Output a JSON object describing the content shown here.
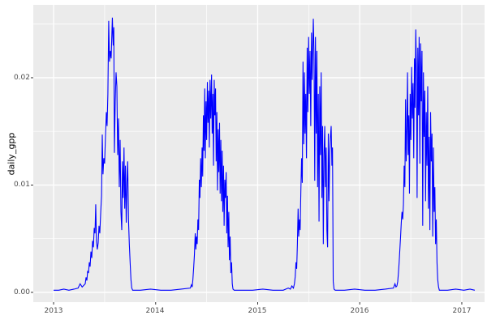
{
  "figure": {
    "background": "#FFFFFF",
    "panel_bg": "#EBEBEB",
    "grid_color": "#FFFFFF",
    "axis_text_color": "#4D4D4D",
    "tick_mark_color": "#333333"
  },
  "chart_data": {
    "type": "line",
    "title": "",
    "xlabel": "",
    "ylabel": "daily_gpp",
    "legend": "none",
    "grid": true,
    "line_color": "#0000FF",
    "xlim": [
      2012.801,
      2017.223
    ],
    "ylim": [
      -0.00091,
      0.02679
    ],
    "x_major_ticks": [
      2013,
      2014,
      2015,
      2016,
      2017
    ],
    "x_tick_labels": [
      "2013",
      "2014",
      "2015",
      "2016",
      "2017"
    ],
    "x_minor_ticks": [
      2013.5,
      2014.5,
      2015.5,
      2016.5
    ],
    "y_major_ticks": [
      0.0,
      0.01,
      0.02
    ],
    "y_tick_labels": [
      "0.00",
      "0.01",
      "0.02"
    ],
    "y_minor_ticks": [
      0.005,
      0.015,
      0.025
    ],
    "peak_summary": {
      "2013": 0.0256,
      "2014": 0.0203,
      "2015": 0.0255,
      "2016": 0.0245
    },
    "series": [
      {
        "name": "daily_gpp",
        "points": [
          [
            2013.0,
            0.0002
          ],
          [
            2013.05,
            0.0002
          ],
          [
            2013.1,
            0.0003
          ],
          [
            2013.15,
            0.0002
          ],
          [
            2013.2,
            0.0003
          ],
          [
            2013.24,
            0.0004
          ],
          [
            2013.26,
            0.0008
          ],
          [
            2013.28,
            0.0005
          ],
          [
            2013.31,
            0.0008
          ],
          [
            2013.318,
            0.0014
          ],
          [
            2013.326,
            0.0011
          ],
          [
            2013.334,
            0.002
          ],
          [
            2013.342,
            0.0018
          ],
          [
            2013.35,
            0.0028
          ],
          [
            2013.358,
            0.0024
          ],
          [
            2013.366,
            0.0038
          ],
          [
            2013.374,
            0.0032
          ],
          [
            2013.382,
            0.0048
          ],
          [
            2013.39,
            0.0042
          ],
          [
            2013.398,
            0.006
          ],
          [
            2013.406,
            0.0055
          ],
          [
            2013.413,
            0.0082
          ],
          [
            2013.42,
            0.0048
          ],
          [
            2013.428,
            0.004
          ],
          [
            2013.437,
            0.0046
          ],
          [
            2013.445,
            0.0062
          ],
          [
            2013.453,
            0.0055
          ],
          [
            2013.462,
            0.0075
          ],
          [
            2013.47,
            0.009
          ],
          [
            2013.477,
            0.0147
          ],
          [
            2013.484,
            0.011
          ],
          [
            2013.492,
            0.0125
          ],
          [
            2013.5,
            0.012
          ],
          [
            2013.508,
            0.0145
          ],
          [
            2013.517,
            0.0168
          ],
          [
            2013.524,
            0.0155
          ],
          [
            2013.532,
            0.0185
          ],
          [
            2013.54,
            0.0253
          ],
          [
            2013.548,
            0.0215
          ],
          [
            2013.556,
            0.0225
          ],
          [
            2013.564,
            0.0218
          ],
          [
            2013.576,
            0.0256
          ],
          [
            2013.584,
            0.023
          ],
          [
            2013.59,
            0.0247
          ],
          [
            2013.596,
            0.013
          ],
          [
            2013.604,
            0.0178
          ],
          [
            2013.612,
            0.0205
          ],
          [
            2013.62,
            0.0192
          ],
          [
            2013.628,
            0.0128
          ],
          [
            2013.636,
            0.0162
          ],
          [
            2013.644,
            0.0098
          ],
          [
            2013.652,
            0.0142
          ],
          [
            2013.66,
            0.0075
          ],
          [
            2013.668,
            0.0058
          ],
          [
            2013.675,
            0.0122
          ],
          [
            2013.682,
            0.0088
          ],
          [
            2013.69,
            0.0135
          ],
          [
            2013.697,
            0.0078
          ],
          [
            2013.704,
            0.0118
          ],
          [
            2013.712,
            0.0065
          ],
          [
            2013.719,
            0.0102
          ],
          [
            2013.726,
            0.0122
          ],
          [
            2013.734,
            0.0068
          ],
          [
            2013.742,
            0.0045
          ],
          [
            2013.75,
            0.0028
          ],
          [
            2013.758,
            0.0012
          ],
          [
            2013.766,
            0.0004
          ],
          [
            2013.775,
            0.0002
          ],
          [
            2013.85,
            0.0002
          ],
          [
            2013.95,
            0.0003
          ],
          [
            2014.05,
            0.0002
          ],
          [
            2014.15,
            0.0002
          ],
          [
            2014.25,
            0.0003
          ],
          [
            2014.34,
            0.0004
          ],
          [
            2014.35,
            0.0007
          ],
          [
            2014.358,
            0.0005
          ],
          [
            2014.365,
            0.0012
          ],
          [
            2014.372,
            0.0022
          ],
          [
            2014.38,
            0.0035
          ],
          [
            2014.388,
            0.0055
          ],
          [
            2014.394,
            0.004
          ],
          [
            2014.4,
            0.0052
          ],
          [
            2014.407,
            0.0045
          ],
          [
            2014.414,
            0.0068
          ],
          [
            2014.421,
            0.0058
          ],
          [
            2014.428,
            0.0105
          ],
          [
            2014.434,
            0.0088
          ],
          [
            2014.441,
            0.0125
          ],
          [
            2014.448,
            0.0098
          ],
          [
            2014.455,
            0.0135
          ],
          [
            2014.461,
            0.0108
          ],
          [
            2014.468,
            0.0165
          ],
          [
            2014.474,
            0.0132
          ],
          [
            2014.481,
            0.019
          ],
          [
            2014.487,
            0.0125
          ],
          [
            2014.494,
            0.0178
          ],
          [
            2014.5,
            0.0142
          ],
          [
            2014.507,
            0.0196
          ],
          [
            2014.513,
            0.0158
          ],
          [
            2014.52,
            0.0188
          ],
          [
            2014.526,
            0.0135
          ],
          [
            2014.533,
            0.0198
          ],
          [
            2014.54,
            0.0162
          ],
          [
            2014.548,
            0.0203
          ],
          [
            2014.554,
            0.0148
          ],
          [
            2014.561,
            0.0185
          ],
          [
            2014.567,
            0.0118
          ],
          [
            2014.574,
            0.0198
          ],
          [
            2014.58,
            0.0165
          ],
          [
            2014.587,
            0.019
          ],
          [
            2014.593,
            0.0122
          ],
          [
            2014.6,
            0.0168
          ],
          [
            2014.606,
            0.0095
          ],
          [
            2014.613,
            0.0152
          ],
          [
            2014.619,
            0.0112
          ],
          [
            2014.626,
            0.0158
          ],
          [
            2014.632,
            0.0092
          ],
          [
            2014.639,
            0.0142
          ],
          [
            2014.645,
            0.0085
          ],
          [
            2014.652,
            0.0132
          ],
          [
            2014.658,
            0.0075
          ],
          [
            2014.665,
            0.0118
          ],
          [
            2014.671,
            0.0062
          ],
          [
            2014.678,
            0.0105
          ],
          [
            2014.684,
            0.0088
          ],
          [
            2014.691,
            0.0112
          ],
          [
            2014.697,
            0.0055
          ],
          [
            2014.704,
            0.009
          ],
          [
            2014.71,
            0.0042
          ],
          [
            2014.717,
            0.0075
          ],
          [
            2014.723,
            0.003
          ],
          [
            2014.73,
            0.0052
          ],
          [
            2014.737,
            0.0018
          ],
          [
            2014.744,
            0.0028
          ],
          [
            2014.751,
            0.0008
          ],
          [
            2014.758,
            0.0003
          ],
          [
            2014.77,
            0.0002
          ],
          [
            2014.85,
            0.0002
          ],
          [
            2014.95,
            0.0002
          ],
          [
            2015.05,
            0.0003
          ],
          [
            2015.15,
            0.0002
          ],
          [
            2015.25,
            0.0002
          ],
          [
            2015.3,
            0.0004
          ],
          [
            2015.32,
            0.0003
          ],
          [
            2015.335,
            0.0006
          ],
          [
            2015.35,
            0.0004
          ],
          [
            2015.36,
            0.0008
          ],
          [
            2015.368,
            0.0015
          ],
          [
            2015.375,
            0.0028
          ],
          [
            2015.382,
            0.0022
          ],
          [
            2015.389,
            0.0045
          ],
          [
            2015.396,
            0.0078
          ],
          [
            2015.402,
            0.0052
          ],
          [
            2015.409,
            0.0068
          ],
          [
            2015.416,
            0.0058
          ],
          [
            2015.423,
            0.0095
          ],
          [
            2015.43,
            0.0125
          ],
          [
            2015.437,
            0.0102
          ],
          [
            2015.444,
            0.0215
          ],
          [
            2015.451,
            0.0138
          ],
          [
            2015.458,
            0.0205
          ],
          [
            2015.464,
            0.0148
          ],
          [
            2015.471,
            0.0185
          ],
          [
            2015.478,
            0.0125
          ],
          [
            2015.485,
            0.0228
          ],
          [
            2015.492,
            0.0168
          ],
          [
            2015.499,
            0.0238
          ],
          [
            2015.506,
            0.0185
          ],
          [
            2015.513,
            0.0225
          ],
          [
            2015.52,
            0.0155
          ],
          [
            2015.527,
            0.0242
          ],
          [
            2015.534,
            0.0198
          ],
          [
            2015.545,
            0.0255
          ],
          [
            2015.552,
            0.0222
          ],
          [
            2015.559,
            0.0104
          ],
          [
            2015.566,
            0.0238
          ],
          [
            2015.573,
            0.0148
          ],
          [
            2015.58,
            0.0225
          ],
          [
            2015.587,
            0.0098
          ],
          [
            2015.594,
            0.0185
          ],
          [
            2015.601,
            0.0066
          ],
          [
            2015.608,
            0.0192
          ],
          [
            2015.615,
            0.0128
          ],
          [
            2015.622,
            0.0205
          ],
          [
            2015.629,
            0.0088
          ],
          [
            2015.636,
            0.0155
          ],
          [
            2015.643,
            0.0045
          ],
          [
            2015.65,
            0.0128
          ],
          [
            2015.657,
            0.0155
          ],
          [
            2015.664,
            0.0098
          ],
          [
            2015.671,
            0.0135
          ],
          [
            2015.678,
            0.0058
          ],
          [
            2015.685,
            0.0042
          ],
          [
            2015.692,
            0.0148
          ],
          [
            2015.699,
            0.0085
          ],
          [
            2015.706,
            0.013
          ],
          [
            2015.713,
            0.0145
          ],
          [
            2015.72,
            0.0155
          ],
          [
            2015.727,
            0.0118
          ],
          [
            2015.733,
            0.0135
          ],
          [
            2015.74,
            0.001
          ],
          [
            2015.748,
            0.0003
          ],
          [
            2015.76,
            0.0002
          ],
          [
            2015.85,
            0.0002
          ],
          [
            2015.95,
            0.0003
          ],
          [
            2016.05,
            0.0002
          ],
          [
            2016.15,
            0.0002
          ],
          [
            2016.25,
            0.0003
          ],
          [
            2016.33,
            0.0004
          ],
          [
            2016.345,
            0.0008
          ],
          [
            2016.355,
            0.0005
          ],
          [
            2016.364,
            0.0006
          ],
          [
            2016.372,
            0.001
          ],
          [
            2016.379,
            0.0018
          ],
          [
            2016.386,
            0.0028
          ],
          [
            2016.393,
            0.004
          ],
          [
            2016.4,
            0.0052
          ],
          [
            2016.407,
            0.0065
          ],
          [
            2016.414,
            0.0075
          ],
          [
            2016.421,
            0.0068
          ],
          [
            2016.428,
            0.0082
          ],
          [
            2016.435,
            0.0118
          ],
          [
            2016.442,
            0.0098
          ],
          [
            2016.449,
            0.018
          ],
          [
            2016.455,
            0.0122
          ],
          [
            2016.462,
            0.0155
          ],
          [
            2016.468,
            0.0205
          ],
          [
            2016.474,
            0.0128
          ],
          [
            2016.481,
            0.0165
          ],
          [
            2016.487,
            0.0092
          ],
          [
            2016.494,
            0.0185
          ],
          [
            2016.501,
            0.0142
          ],
          [
            2016.508,
            0.021
          ],
          [
            2016.515,
            0.0162
          ],
          [
            2016.522,
            0.0195
          ],
          [
            2016.529,
            0.0125
          ],
          [
            2016.536,
            0.0218
          ],
          [
            2016.542,
            0.0172
          ],
          [
            2016.549,
            0.0245
          ],
          [
            2016.556,
            0.0205
          ],
          [
            2016.562,
            0.0088
          ],
          [
            2016.569,
            0.0228
          ],
          [
            2016.576,
            0.0165
          ],
          [
            2016.582,
            0.0238
          ],
          [
            2016.589,
            0.012
          ],
          [
            2016.596,
            0.0232
          ],
          [
            2016.603,
            0.0178
          ],
          [
            2016.61,
            0.0225
          ],
          [
            2016.617,
            0.0062
          ],
          [
            2016.624,
            0.0205
          ],
          [
            2016.631,
            0.0145
          ],
          [
            2016.638,
            0.0188
          ],
          [
            2016.645,
            0.0085
          ],
          [
            2016.652,
            0.0168
          ],
          [
            2016.659,
            0.0118
          ],
          [
            2016.666,
            0.0192
          ],
          [
            2016.673,
            0.0078
          ],
          [
            2016.68,
            0.0145
          ],
          [
            2016.687,
            0.0058
          ],
          [
            2016.694,
            0.0168
          ],
          [
            2016.701,
            0.0122
          ],
          [
            2016.708,
            0.0148
          ],
          [
            2016.715,
            0.0052
          ],
          [
            2016.722,
            0.0135
          ],
          [
            2016.729,
            0.0075
          ],
          [
            2016.736,
            0.0098
          ],
          [
            2016.743,
            0.0045
          ],
          [
            2016.75,
            0.0068
          ],
          [
            2016.757,
            0.0028
          ],
          [
            2016.764,
            0.0012
          ],
          [
            2016.772,
            0.0005
          ],
          [
            2016.78,
            0.0002
          ],
          [
            2016.86,
            0.0002
          ],
          [
            2016.94,
            0.0003
          ],
          [
            2017.02,
            0.0002
          ],
          [
            2017.08,
            0.0003
          ],
          [
            2017.127,
            0.0002
          ]
        ]
      }
    ]
  }
}
